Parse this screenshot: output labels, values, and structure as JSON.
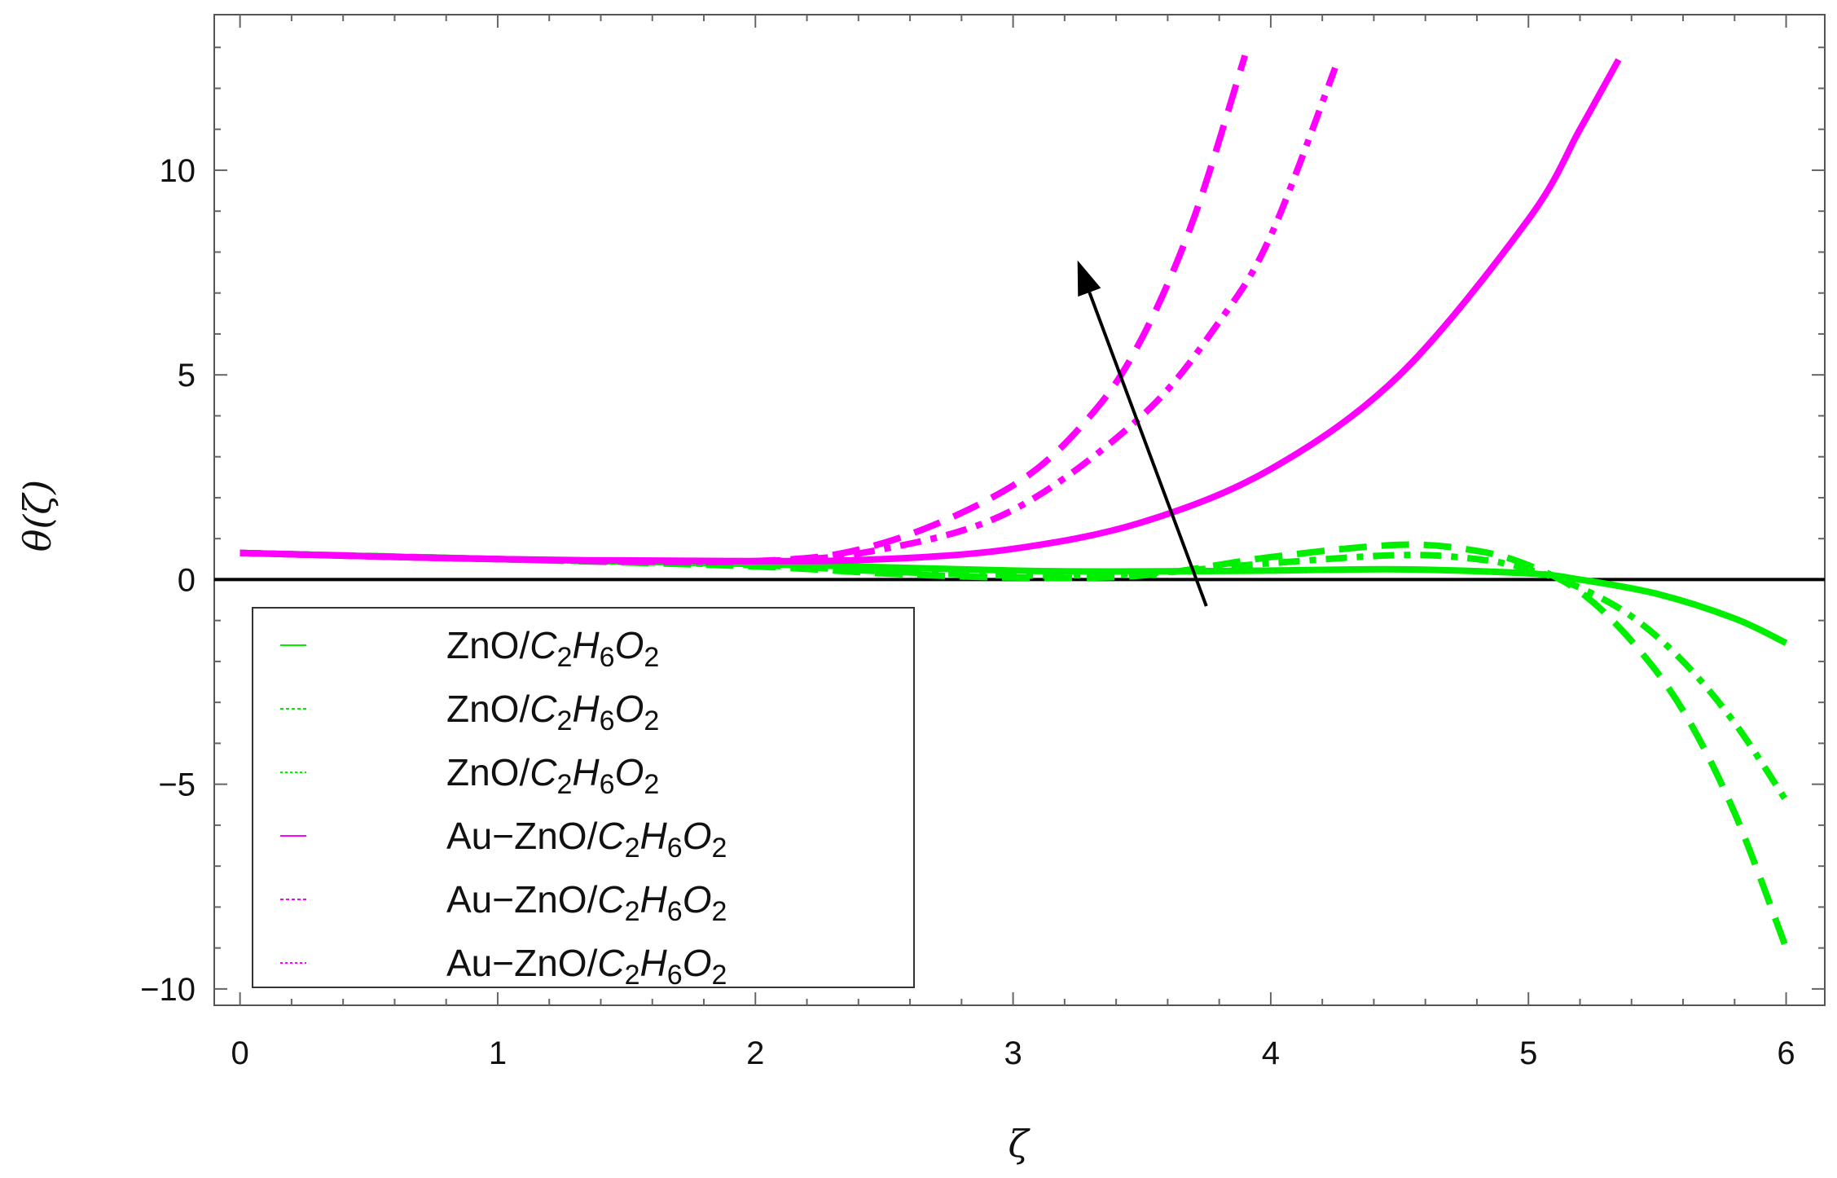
{
  "chart_data": {
    "type": "line",
    "title": "",
    "xlabel": "ζ",
    "ylabel": "θ(ζ)",
    "xlim": [
      -0.1,
      6.15
    ],
    "ylim": [
      -10.4,
      13.8
    ],
    "xticks": [
      0,
      1,
      2,
      3,
      4,
      5,
      6
    ],
    "xtick_labels": [
      "0",
      "1",
      "2",
      "3",
      "4",
      "5",
      "6"
    ],
    "yticks": [
      -10,
      -5,
      0,
      5,
      10
    ],
    "ytick_labels": [
      "−10",
      "−5",
      "0",
      "5",
      "10"
    ],
    "grid": false,
    "legend": {
      "placement": "bottom-left",
      "entries": [
        {
          "prefix": "ZnO/",
          "c": "C",
          "s1": "2",
          "h": "H",
          "s2": "6",
          "o": "O",
          "s3": "2"
        },
        {
          "prefix": "ZnO/",
          "c": "C",
          "s1": "2",
          "h": "H",
          "s2": "6",
          "o": "O",
          "s3": "2"
        },
        {
          "prefix": "ZnO/",
          "c": "C",
          "s1": "2",
          "h": "H",
          "s2": "6",
          "o": "O",
          "s3": "2"
        },
        {
          "prefix": "Au−ZnO/",
          "c": "C",
          "s1": "2",
          "h": "H",
          "s2": "6",
          "o": "O",
          "s3": "2"
        },
        {
          "prefix": "Au−ZnO/",
          "c": "C",
          "s1": "2",
          "h": "H",
          "s2": "6",
          "o": "O",
          "s3": "2"
        },
        {
          "prefix": "Au−ZnO/",
          "c": "C",
          "s1": "2",
          "h": "H",
          "s2": "6",
          "o": "O",
          "s3": "2"
        }
      ]
    },
    "colors": {
      "zno": "#00ee00",
      "hybrid": "#ff00ff",
      "axis": "#000000",
      "arrow": "#000000"
    },
    "series": [
      {
        "group": "zno",
        "dash": "solid",
        "x": [
          0.0,
          1.0,
          2.0,
          3.0,
          3.5,
          4.0,
          4.5,
          5.0,
          5.2,
          5.5,
          5.8,
          6.0
        ],
        "y": [
          0.65,
          0.5,
          0.38,
          0.22,
          0.2,
          0.22,
          0.25,
          0.15,
          0.0,
          -0.35,
          -0.95,
          -1.55
        ]
      },
      {
        "group": "zno",
        "dash": "dashed",
        "x": [
          0.0,
          1.0,
          2.0,
          2.5,
          3.0,
          3.5,
          4.0,
          4.5,
          4.8,
          5.0,
          5.2,
          5.4,
          5.6,
          5.8,
          6.0
        ],
        "y": [
          0.65,
          0.5,
          0.32,
          0.15,
          0.05,
          0.1,
          0.55,
          0.85,
          0.7,
          0.35,
          -0.3,
          -1.5,
          -3.2,
          -5.7,
          -9.0
        ]
      },
      {
        "group": "zno",
        "dash": "dashdot",
        "x": [
          0.0,
          1.0,
          2.0,
          2.5,
          3.0,
          3.5,
          4.0,
          4.5,
          4.8,
          5.0,
          5.2,
          5.4,
          5.6,
          5.8,
          6.0
        ],
        "y": [
          0.65,
          0.5,
          0.35,
          0.2,
          0.1,
          0.15,
          0.4,
          0.6,
          0.5,
          0.25,
          -0.2,
          -0.9,
          -2.0,
          -3.5,
          -5.4
        ]
      },
      {
        "group": "hybrid",
        "dash": "solid",
        "x": [
          0.0,
          1.0,
          2.0,
          2.5,
          3.0,
          3.5,
          4.0,
          4.5,
          5.0,
          5.2,
          5.35
        ],
        "y": [
          0.65,
          0.5,
          0.45,
          0.5,
          0.75,
          1.4,
          2.7,
          5.0,
          8.8,
          11.0,
          12.7
        ]
      },
      {
        "group": "hybrid",
        "dash": "dashed",
        "x": [
          0.0,
          1.0,
          2.0,
          2.5,
          3.0,
          3.3,
          3.5,
          3.7,
          3.9
        ],
        "y": [
          0.65,
          0.5,
          0.45,
          0.9,
          2.3,
          4.0,
          5.9,
          8.8,
          12.8
        ]
      },
      {
        "group": "hybrid",
        "dash": "dashdot",
        "x": [
          0.0,
          1.0,
          2.0,
          2.5,
          3.0,
          3.5,
          3.8,
          4.0,
          4.25
        ],
        "y": [
          0.65,
          0.5,
          0.45,
          0.75,
          1.7,
          4.0,
          6.3,
          8.4,
          12.5
        ]
      }
    ],
    "annotations": [
      {
        "type": "arrow",
        "from": [
          3.75,
          -0.65
        ],
        "to": [
          3.25,
          7.8
        ]
      }
    ]
  }
}
